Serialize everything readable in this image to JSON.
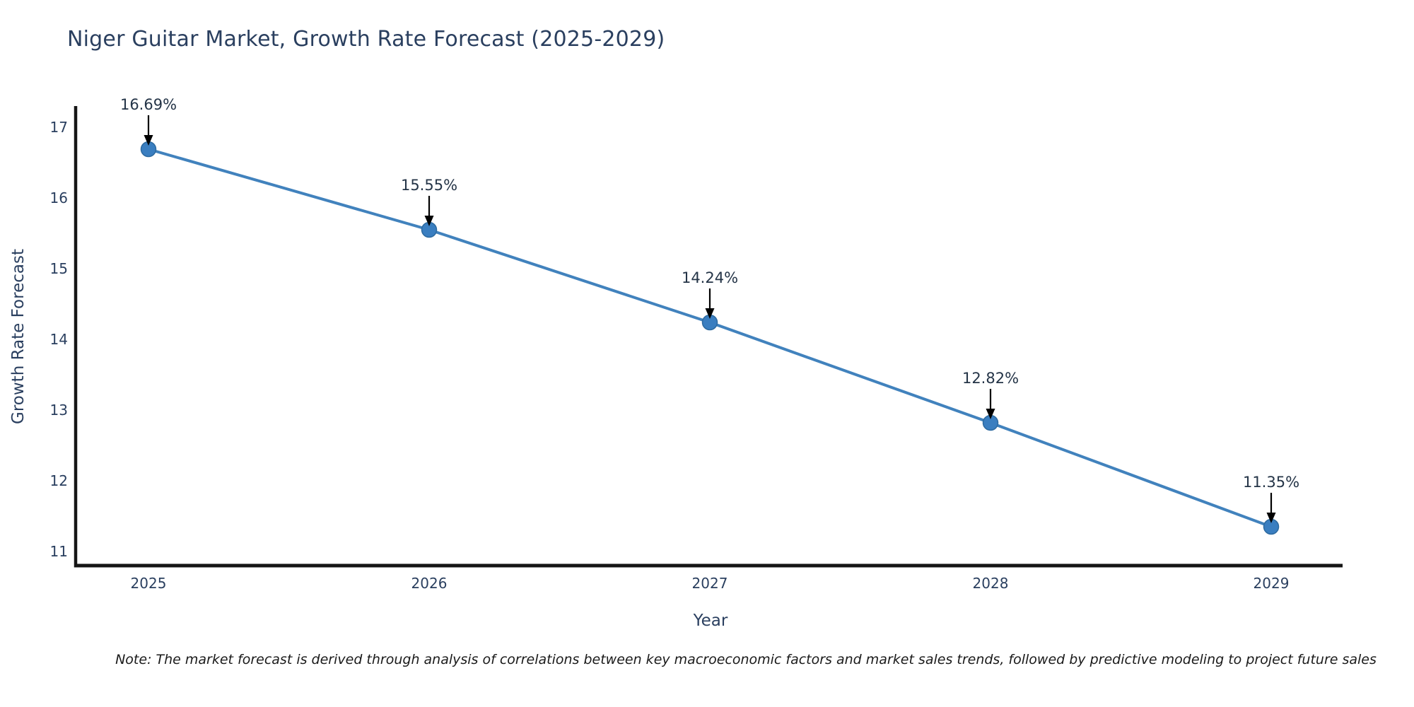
{
  "chart_data": {
    "type": "line",
    "title": "Niger Guitar Market, Growth Rate Forecast (2025-2029)",
    "xlabel": "Year",
    "ylabel": "Growth Rate Forecast",
    "categories": [
      "2025",
      "2026",
      "2027",
      "2028",
      "2029"
    ],
    "values": [
      16.69,
      15.55,
      14.24,
      12.82,
      11.35
    ],
    "point_labels": [
      "16.69%",
      "15.55%",
      "14.24%",
      "12.82%",
      "11.35%"
    ],
    "yticks": [
      11,
      12,
      13,
      14,
      15,
      16,
      17
    ],
    "ylim": [
      10.8,
      17.3
    ],
    "grid": false,
    "legend_position": "none",
    "colors": {
      "line": "#4182bd",
      "marker_fill": "#3a7ec0",
      "marker_edge": "#2d6aa0",
      "axis_line": "#161616",
      "tick_text": "#2a3f5f",
      "annotation_text": "#243447",
      "arrow": "#000000",
      "title_text": "#2a3f5f",
      "note_text": "#1a1a1a"
    },
    "note": "Note: The market forecast is derived through analysis of correlations between key macroeconomic factors and market sales trends, followed by predictive modeling to project future sales"
  }
}
